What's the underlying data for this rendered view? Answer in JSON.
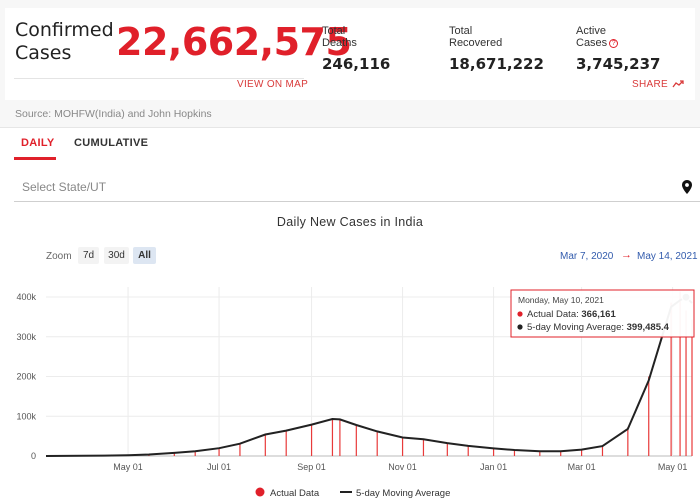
{
  "summary": {
    "confirmed_label": "Confirmed\nCases",
    "confirmed_value": "22,662,575",
    "deaths_label": "Total\nDeaths",
    "deaths_value": "246,116",
    "recovered_label": "Total\nRecovered",
    "recovered_value": "18,671,222",
    "active_label": "Active\nCases",
    "active_value": "3,745,237",
    "view_map": "VIEW ON MAP",
    "share": "SHARE",
    "source": "Source: MOHFW(India) and John Hopkins"
  },
  "tabs": {
    "daily": "DAILY",
    "cumulative": "CUMULATIVE",
    "active": "daily"
  },
  "state_select": {
    "placeholder": "Select State/UT"
  },
  "zoom": {
    "label": "Zoom",
    "options": [
      "7d",
      "30d",
      "All"
    ],
    "selected": "All"
  },
  "range": {
    "from": "Mar 7, 2020",
    "arrow": "→",
    "to": "May 14, 2021"
  },
  "colors": {
    "accent": "#e0202a",
    "bar": "#e83a3a",
    "line": "#222222",
    "link": "#335cad"
  },
  "chart_data": {
    "type": "bar",
    "title": "Daily New Cases in India",
    "ylim": [
      0,
      400000
    ],
    "yticks": [
      0,
      100000,
      200000,
      300000,
      400000
    ],
    "ytick_labels": [
      "0",
      "100k",
      "200k",
      "300k",
      "400k"
    ],
    "xlim": [
      "2020-03-07",
      "2021-05-14"
    ],
    "xticks": [
      "2020-05-01",
      "2020-07-01",
      "2020-09-01",
      "2020-11-01",
      "2021-01-01",
      "2021-03-01",
      "2021-05-01"
    ],
    "xtick_labels": [
      "May 01",
      "Jul 01",
      "Sep 01",
      "Nov 01",
      "Jan 01",
      "Mar 01",
      "May 01"
    ],
    "grid": true,
    "legend_position": "bottom",
    "series": [
      {
        "name": "Actual Data",
        "kind": "bar",
        "color": "#e83a3a",
        "points": [
          [
            "2020-03-07",
            0
          ],
          [
            "2020-04-01",
            500
          ],
          [
            "2020-04-15",
            1000
          ],
          [
            "2020-05-01",
            2000
          ],
          [
            "2020-05-15",
            4000
          ],
          [
            "2020-06-01",
            8000
          ],
          [
            "2020-06-15",
            12000
          ],
          [
            "2020-07-01",
            20000
          ],
          [
            "2020-07-15",
            32000
          ],
          [
            "2020-08-01",
            55000
          ],
          [
            "2020-08-15",
            65000
          ],
          [
            "2020-09-01",
            80000
          ],
          [
            "2020-09-15",
            95000
          ],
          [
            "2020-09-20",
            92000
          ],
          [
            "2020-10-01",
            78000
          ],
          [
            "2020-10-15",
            62000
          ],
          [
            "2020-11-01",
            46000
          ],
          [
            "2020-11-15",
            42000
          ],
          [
            "2020-12-01",
            32000
          ],
          [
            "2020-12-15",
            25000
          ],
          [
            "2021-01-01",
            19000
          ],
          [
            "2021-01-15",
            15000
          ],
          [
            "2021-02-01",
            11500
          ],
          [
            "2021-02-15",
            11500
          ],
          [
            "2021-03-01",
            16000
          ],
          [
            "2021-03-15",
            26000
          ],
          [
            "2021-04-01",
            72000
          ],
          [
            "2021-04-15",
            200000
          ],
          [
            "2021-04-30",
            386000
          ],
          [
            "2021-05-06",
            414000
          ],
          [
            "2021-05-10",
            366161
          ],
          [
            "2021-05-14",
            343000
          ]
        ]
      },
      {
        "name": "5-day Moving Average",
        "kind": "line",
        "color": "#222222",
        "points": [
          [
            "2020-03-07",
            0
          ],
          [
            "2020-04-01",
            400
          ],
          [
            "2020-04-15",
            900
          ],
          [
            "2020-05-01",
            1900
          ],
          [
            "2020-05-15",
            3800
          ],
          [
            "2020-06-01",
            7800
          ],
          [
            "2020-06-15",
            11800
          ],
          [
            "2020-07-01",
            19500
          ],
          [
            "2020-07-15",
            31000
          ],
          [
            "2020-08-01",
            54000
          ],
          [
            "2020-08-15",
            64000
          ],
          [
            "2020-09-01",
            79000
          ],
          [
            "2020-09-15",
            93000
          ],
          [
            "2020-09-20",
            92000
          ],
          [
            "2020-10-01",
            78000
          ],
          [
            "2020-10-15",
            62000
          ],
          [
            "2020-11-01",
            46500
          ],
          [
            "2020-11-15",
            42000
          ],
          [
            "2020-12-01",
            32500
          ],
          [
            "2020-12-15",
            25500
          ],
          [
            "2021-01-01",
            19000
          ],
          [
            "2021-01-15",
            15000
          ],
          [
            "2021-02-01",
            11800
          ],
          [
            "2021-02-15",
            11800
          ],
          [
            "2021-03-01",
            16000
          ],
          [
            "2021-03-15",
            25000
          ],
          [
            "2021-04-01",
            68000
          ],
          [
            "2021-04-15",
            190000
          ],
          [
            "2021-04-30",
            375000
          ],
          [
            "2021-05-06",
            392000
          ],
          [
            "2021-05-10",
            399485.4
          ],
          [
            "2021-05-14",
            385000
          ]
        ]
      }
    ],
    "tooltip": {
      "date": "Monday, May 10, 2021",
      "actual_label": "Actual Data: ",
      "actual_value": "366,161",
      "avg_label": "5-day Moving Average: ",
      "avg_value": "399,485.4"
    },
    "legend": [
      "Actual Data",
      "5-day Moving Average"
    ]
  }
}
